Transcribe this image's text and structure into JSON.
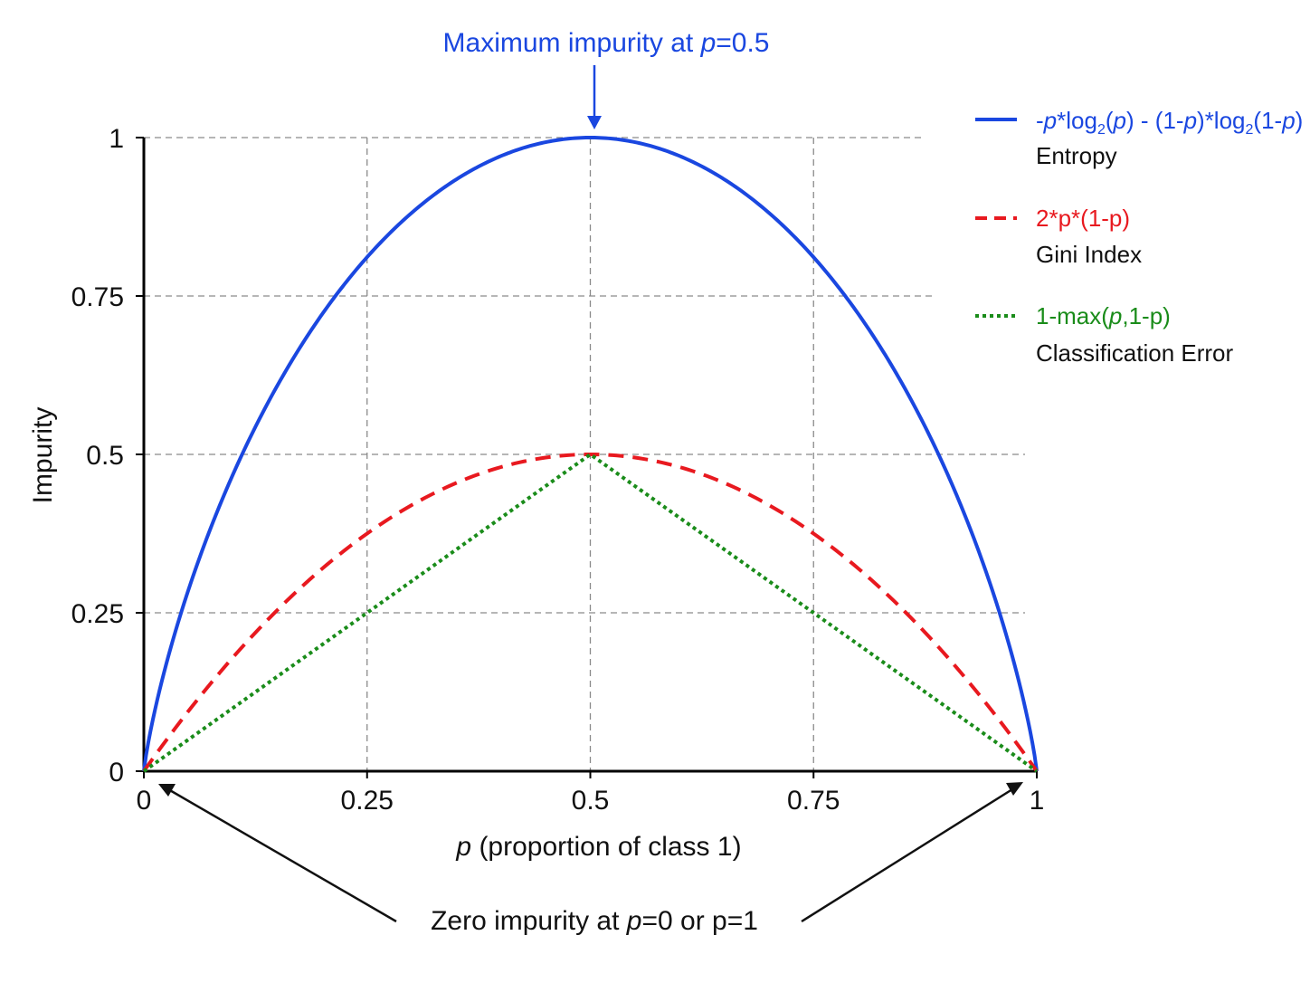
{
  "chart_data": {
    "type": "line",
    "xlabel_var": "p",
    "xlabel_rest": " (proportion of class 1)",
    "ylabel": "Impurity",
    "xlim": [
      0,
      1
    ],
    "ylim": [
      0,
      1
    ],
    "x_ticks": [
      0,
      0.25,
      0.5,
      0.75,
      1
    ],
    "y_ticks": [
      0,
      0.25,
      0.5,
      0.75,
      1
    ],
    "x_tick_labels": [
      "0",
      "0.25",
      "0.5",
      "0.75",
      "1"
    ],
    "y_tick_labels": [
      "0",
      "0.25",
      "0.5",
      "0.75",
      "1"
    ],
    "grid": true,
    "legend_position": "right",
    "series": [
      {
        "key": "entropy",
        "formula": "-p*log2(p) - (1-p)*log2(1-p)",
        "name": "Entropy",
        "color": "#1a47e0",
        "style": "solid",
        "x": [
          0,
          0.05,
          0.1,
          0.15,
          0.2,
          0.25,
          0.3,
          0.35,
          0.4,
          0.45,
          0.5,
          0.55,
          0.6,
          0.65,
          0.7,
          0.75,
          0.8,
          0.85,
          0.9,
          0.95,
          1
        ],
        "y": [
          0,
          0.286,
          0.469,
          0.61,
          0.722,
          0.811,
          0.881,
          0.934,
          0.971,
          0.993,
          1,
          0.993,
          0.971,
          0.934,
          0.881,
          0.811,
          0.722,
          0.61,
          0.469,
          0.286,
          0
        ]
      },
      {
        "key": "gini",
        "formula": "2*p*(1-p)",
        "name": "Gini Index",
        "color": "#e8191f",
        "style": "dashed",
        "x": [
          0,
          0.05,
          0.1,
          0.15,
          0.2,
          0.25,
          0.3,
          0.35,
          0.4,
          0.45,
          0.5,
          0.55,
          0.6,
          0.65,
          0.7,
          0.75,
          0.8,
          0.85,
          0.9,
          0.95,
          1
        ],
        "y": [
          0,
          0.095,
          0.18,
          0.255,
          0.32,
          0.375,
          0.42,
          0.455,
          0.48,
          0.495,
          0.5,
          0.495,
          0.48,
          0.455,
          0.42,
          0.375,
          0.32,
          0.255,
          0.18,
          0.095,
          0
        ]
      },
      {
        "key": "error",
        "formula": "1-max(p,1-p)",
        "name": "Classification Error",
        "color": "#1a8c1a",
        "style": "dotted",
        "x": [
          0,
          0.5,
          1
        ],
        "y": [
          0,
          0.5,
          0
        ]
      }
    ],
    "annotations": {
      "top_prefix": "Maximum impurity at ",
      "top_var": "p",
      "top_suffix": "=0.5",
      "top_color": "#1a47e0",
      "bottom_prefix": "Zero impurity at ",
      "bottom_var": "p",
      "bottom_suffix": "=0 or p=1"
    }
  }
}
